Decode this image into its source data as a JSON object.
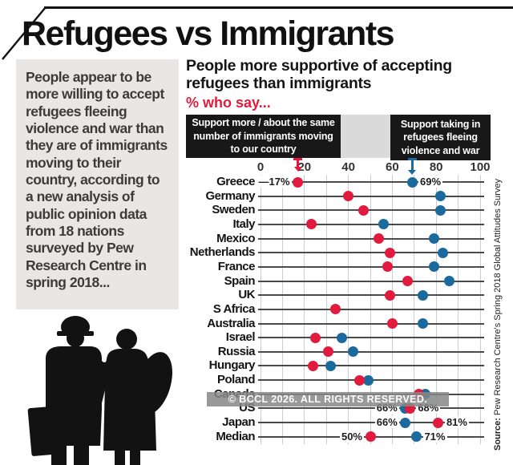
{
  "page": {
    "title": "Refugees vs Immigrants"
  },
  "intro": {
    "text": "People appear to be more willing to accept refugees fleeing violence and war than they are of immigrants moving to their country, according to a new analysis of public opinion data from 18 nations surveyed by Pew Research Centre in spring 2018..."
  },
  "subtitle": {
    "text": "People more supportive of accepting refugees than immigrants",
    "kicker": "% who say..."
  },
  "legend": {
    "immigrants_box": "Support more / about the same number of immigrants moving to our country",
    "refugees_box": "Support taking in refugees fleeing violence and war"
  },
  "watermark": "© BCCL 2026. ALL RIGHTS RESERVED.",
  "source": {
    "label": "Source:",
    "text": " Pew Research Centre's Spring 2018 Global Attitudes Survey"
  },
  "colors": {
    "immigrants_red": "#e01b3d",
    "refugees_blue": "#1b6a9e",
    "kicker_red": "#e01b3d"
  },
  "chart_data": {
    "type": "scatter",
    "subtype": "dumbbell-dot-plot",
    "title": "People more supportive of accepting refugees than immigrants (% who say...)",
    "xlabel": "% who say",
    "xlim": [
      0,
      100
    ],
    "ticks": [
      0,
      20,
      40,
      60,
      80,
      100
    ],
    "grid": "vertical, every 10",
    "legend_position": "top, black callout boxes pointing to Greece row",
    "series": [
      {
        "name": "Support more / about the same number of immigrants moving to our country",
        "color": "#e01b3d"
      },
      {
        "name": "Support taking in refugees fleeing violence and war",
        "color": "#1b6a9e"
      }
    ],
    "rows": [
      {
        "country": "Greece",
        "immigrants": 17,
        "refugees": 69,
        "labels": [
          {
            "dot": "immigrants",
            "text": "—17%",
            "side": "left"
          },
          {
            "dot": "refugees",
            "text": "69%",
            "side": "right"
          }
        ]
      },
      {
        "country": "Germany",
        "immigrants": 40,
        "refugees": 82
      },
      {
        "country": "Sweden",
        "immigrants": 47,
        "refugees": 82
      },
      {
        "country": "Italy",
        "immigrants": 23,
        "refugees": 56
      },
      {
        "country": "Mexico",
        "immigrants": 54,
        "refugees": 79
      },
      {
        "country": "Netherlands",
        "immigrants": 59,
        "refugees": 83
      },
      {
        "country": "France",
        "immigrants": 58,
        "refugees": 79
      },
      {
        "country": "Spain",
        "immigrants": 67,
        "refugees": 86
      },
      {
        "country": "UK",
        "immigrants": 59,
        "refugees": 74
      },
      {
        "country": "S Africa",
        "immigrants": 34,
        "refugees": null
      },
      {
        "country": "Australia",
        "immigrants": 60,
        "refugees": 74
      },
      {
        "country": "Israel",
        "immigrants": 25,
        "refugees": 37
      },
      {
        "country": "Russia",
        "immigrants": 31,
        "refugees": 42
      },
      {
        "country": "Hungary",
        "immigrants": 24,
        "refugees": 32
      },
      {
        "country": "Poland",
        "immigrants": 45,
        "refugees": 49
      },
      {
        "country": "Canada",
        "immigrants": 72,
        "refugees": 75
      },
      {
        "country": "US",
        "immigrants": 68,
        "refugees": 66,
        "labels": [
          {
            "dot": "refugees",
            "text": "66%",
            "side": "left"
          },
          {
            "dot": "immigrants",
            "text": "68%",
            "side": "right"
          }
        ]
      },
      {
        "country": "Japan",
        "immigrants": 81,
        "refugees": 66,
        "labels": [
          {
            "dot": "refugees",
            "text": "66%",
            "side": "left"
          },
          {
            "dot": "immigrants",
            "text": "81%",
            "side": "right"
          }
        ]
      },
      {
        "country": "Median",
        "immigrants": 50,
        "refugees": 71,
        "labels": [
          {
            "dot": "immigrants",
            "text": "50%",
            "side": "left"
          },
          {
            "dot": "refugees",
            "text": "71%",
            "side": "right"
          }
        ]
      }
    ]
  }
}
